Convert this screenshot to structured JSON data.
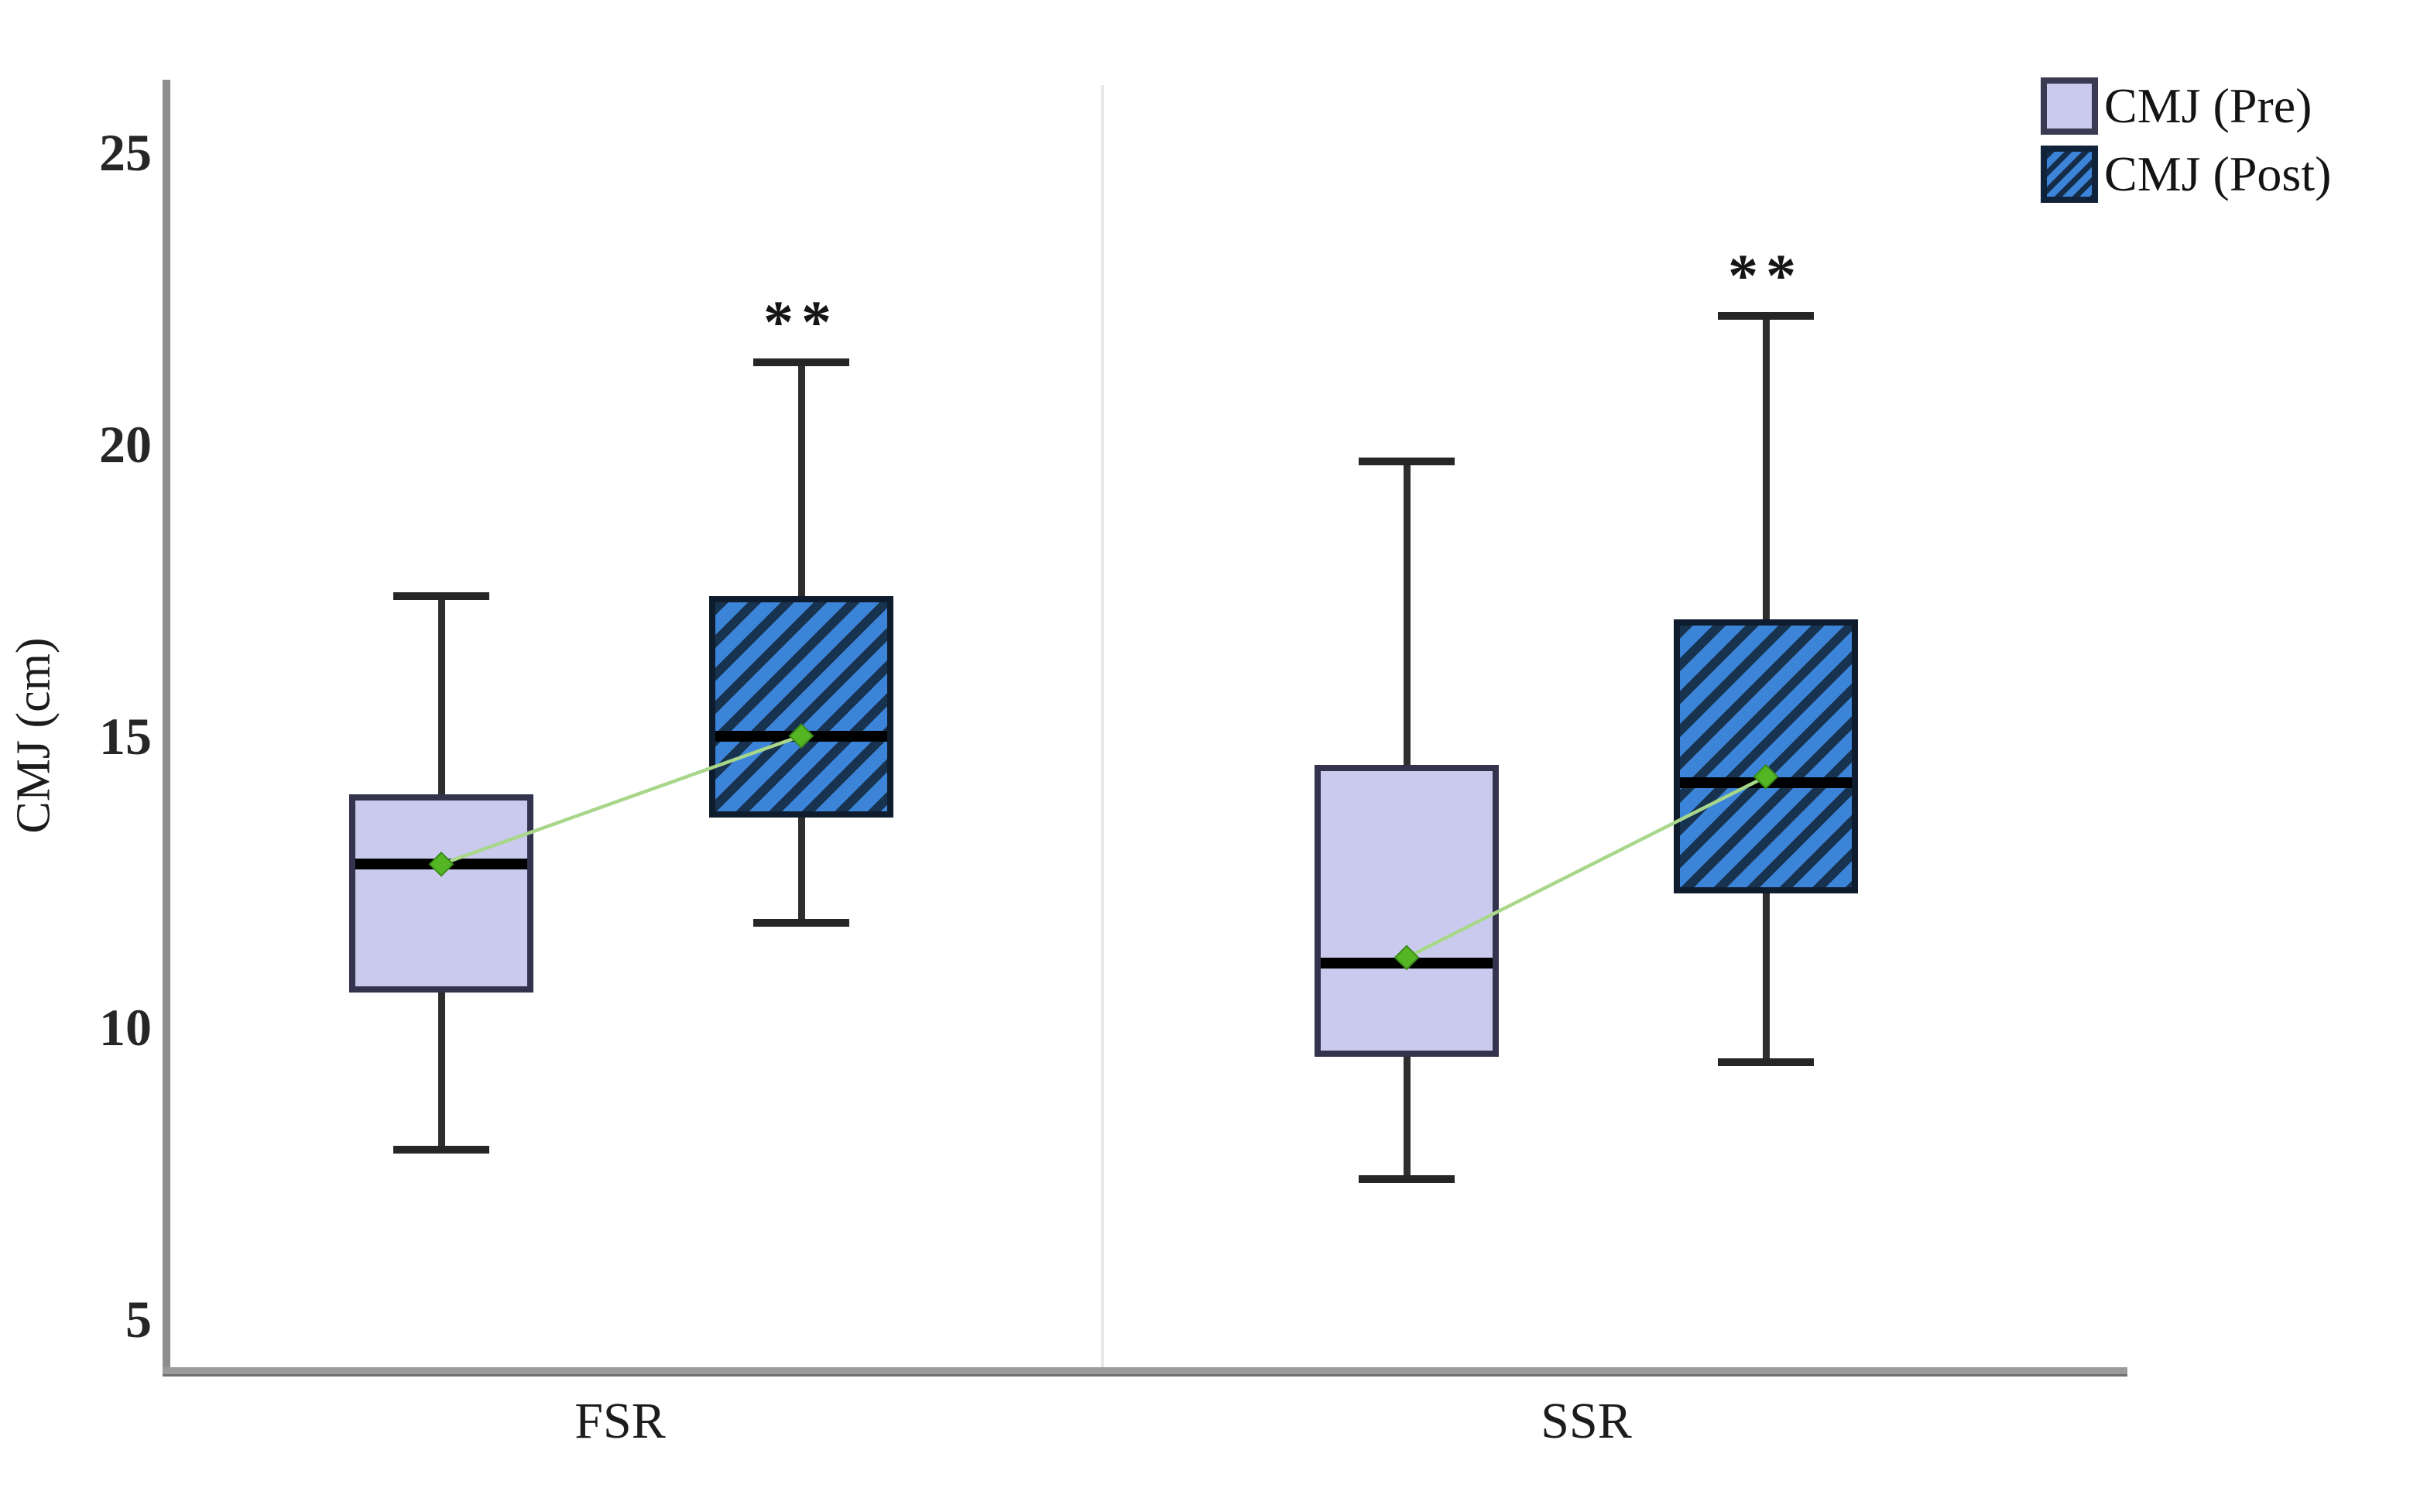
{
  "figure": {
    "background": "#ffffff"
  },
  "chart_data": {
    "type": "boxplot",
    "title": "",
    "xlabel": "",
    "ylabel": "CMJ (cm)",
    "categories": [
      "FSR",
      "SSR"
    ],
    "y_ticks": [
      25,
      20,
      15,
      10,
      5
    ],
    "ylim": [
      4,
      26
    ],
    "grid": false,
    "legend_position": "top-right",
    "legend": [
      {
        "label": "CMJ (Pre)",
        "style": "solid-lavender"
      },
      {
        "label": "CMJ (Post)",
        "style": "hatched-blue"
      }
    ],
    "series": [
      {
        "group": "FSR",
        "condition": "CMJ (Pre)",
        "whisker_low": 7.9,
        "q1": 10.6,
        "median": 12.8,
        "q3": 14.0,
        "whisker_high": 17.4,
        "mean": 12.8,
        "significance": ""
      },
      {
        "group": "FSR",
        "condition": "CMJ (Post)",
        "whisker_low": 11.8,
        "q1": 13.6,
        "median": 15.0,
        "q3": 17.4,
        "whisker_high": 21.4,
        "mean": 15.0,
        "significance": "**"
      },
      {
        "group": "SSR",
        "condition": "CMJ (Pre)",
        "whisker_low": 7.4,
        "q1": 9.5,
        "median": 11.1,
        "q3": 14.5,
        "whisker_high": 19.7,
        "mean": 11.2,
        "significance": ""
      },
      {
        "group": "SSR",
        "condition": "CMJ (Post)",
        "whisker_low": 9.4,
        "q1": 12.3,
        "median": 14.2,
        "q3": 17.0,
        "whisker_high": 22.2,
        "mean": 14.3,
        "significance": "**"
      }
    ],
    "mean_connectors": [
      {
        "group": "FSR",
        "from_series": 0,
        "to_series": 1
      },
      {
        "group": "SSR",
        "from_series": 2,
        "to_series": 3
      }
    ],
    "colors": {
      "pre_fill": "#c9caee",
      "pre_border": "#33334d",
      "post_fill": "#3c84d8",
      "post_stripe": "#173350",
      "post_border": "#0f1c2e",
      "median": "#000000",
      "whisker": "#2e2e2e",
      "mean_marker": "#54b525",
      "mean_marker_edge": "#3c8c18",
      "mean_line": "#a8d78a",
      "axis": "#8e8e8e",
      "separator": "#e7e7e7",
      "text": "#1c1c1c"
    }
  }
}
